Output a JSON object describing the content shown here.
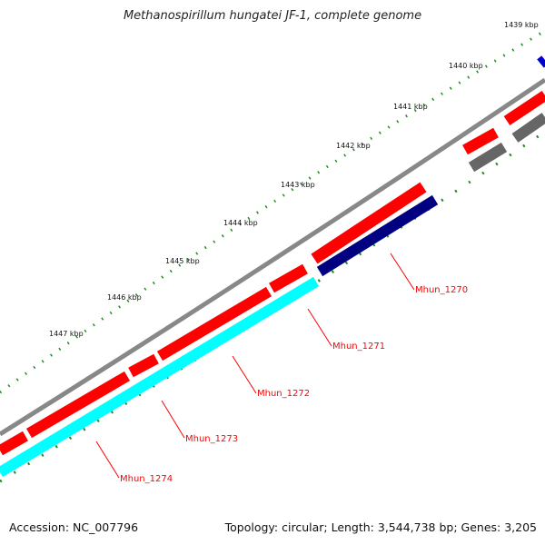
{
  "title": "Methanospirillum hungatei JF-1, complete genome",
  "footer": {
    "accession": "Accession: NC_007796",
    "summary": "Topology: circular; Length: 3,544,738 bp; Genes: 3,205"
  },
  "colors": {
    "backbone": "#888888",
    "forward_cds": "#ff0000",
    "reverse_cds": "#00ffff",
    "reverse_cds_dark": "#000080",
    "other_gene": "#666666",
    "blue_gene": "#0000cc",
    "tick": "#228b22",
    "label": "#ff0000"
  },
  "ruler": {
    "ticks": [
      {
        "label": "1439 kbp"
      },
      {
        "label": "1440 kbp"
      },
      {
        "label": "1441 kbp"
      },
      {
        "label": "1442 kbp"
      },
      {
        "label": "1443 kbp"
      },
      {
        "label": "1444 kbp"
      },
      {
        "label": "1445 kbp"
      },
      {
        "label": "1446 kbp"
      },
      {
        "label": "1447 kbp"
      }
    ]
  },
  "gene_labels": [
    {
      "name": "Mhun_1270"
    },
    {
      "name": "Mhun_1271"
    },
    {
      "name": "Mhun_1272"
    },
    {
      "name": "Mhun_1273"
    },
    {
      "name": "Mhun_1274"
    }
  ]
}
